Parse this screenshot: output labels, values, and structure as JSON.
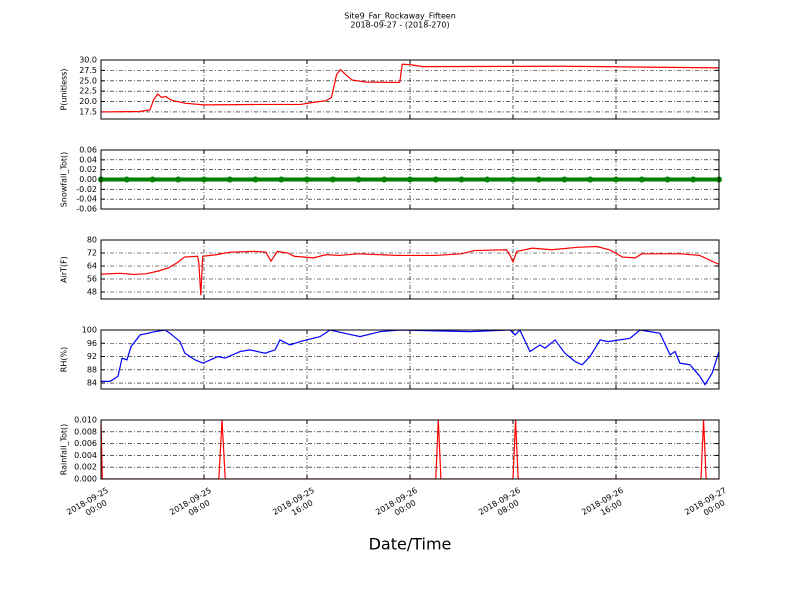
{
  "title": "Site9_Far_Rockaway_Fifteen",
  "subtitle": "2018-09-27 - (2018-270)",
  "xlabel": "Date/Time",
  "chart_data": [
    {
      "type": "line",
      "ylabel": "P(unitless)",
      "grid": true,
      "xlim": [
        "2018-09-25 00:00",
        "2018-09-27 00:00"
      ],
      "xticks": [
        "2018-09-25 00:00",
        "2018-09-25 08:00",
        "2018-09-25 16:00",
        "2018-09-26 00:00",
        "2018-09-26 08:00",
        "2018-09-26 16:00",
        "2018-09-27 00:00"
      ],
      "ylim": [
        15.8,
        30
      ],
      "yticks": [
        {
          "value": 30,
          "label": "30.0"
        },
        27.5,
        {
          "value": 25,
          "label": "25.0"
        },
        22.5,
        {
          "value": 20,
          "label": "20.0"
        },
        17.5
      ],
      "x": [
        "2018-09-25 00:00",
        "2018-09-25 03:00",
        "2018-09-25 03:48",
        "2018-09-25 04:06",
        "2018-09-25 04:24",
        "2018-09-25 04:42",
        "2018-09-25 05:00",
        "2018-09-25 05:30",
        "2018-09-25 06:30",
        "2018-09-25 08:00",
        "2018-09-25 12:00",
        "2018-09-25 15:30",
        "2018-09-25 16:30",
        "2018-09-25 17:30",
        "2018-09-25 17:54",
        "2018-09-25 18:18",
        "2018-09-25 18:36",
        "2018-09-25 19:00",
        "2018-09-25 19:30",
        "2018-09-25 20:30",
        "2018-09-25 23:12",
        "2018-09-25 23:24",
        "2018-09-26 00:12",
        "2018-09-26 01:00",
        "2018-09-26 12:00",
        "2018-09-27 00:00"
      ],
      "series": [
        {
          "color": "#ff0000",
          "values": [
            17.5,
            17.6,
            18.0,
            20.5,
            21.8,
            21.0,
            21.2,
            20.3,
            19.6,
            19.2,
            19.3,
            19.3,
            19.8,
            20.2,
            21.0,
            26.5,
            27.7,
            26.5,
            25.2,
            24.7,
            24.6,
            29.0,
            28.8,
            28.4,
            28.5,
            28.1
          ]
        }
      ]
    },
    {
      "type": "markers",
      "ylabel": "Snowfall_Tot()",
      "grid": true,
      "xlim": [
        "2018-09-25 00:00",
        "2018-09-27 00:00"
      ],
      "xticks": [
        "2018-09-25 00:00",
        "2018-09-25 08:00",
        "2018-09-25 16:00",
        "2018-09-26 00:00",
        "2018-09-26 08:00",
        "2018-09-26 16:00",
        "2018-09-27 00:00"
      ],
      "ylim": [
        -0.06,
        0.06
      ],
      "yticks": [
        0.06,
        0.04,
        0.02,
        {
          "value": 0,
          "label": "0.00"
        },
        -0.02,
        -0.04,
        -0.06
      ],
      "x": [
        "2018-09-25 00:00",
        "2018-09-25 02:00",
        "2018-09-25 04:00",
        "2018-09-25 06:00",
        "2018-09-25 08:00",
        "2018-09-25 10:00",
        "2018-09-25 12:00",
        "2018-09-25 14:00",
        "2018-09-25 16:00",
        "2018-09-25 18:00",
        "2018-09-25 20:00",
        "2018-09-25 22:00",
        "2018-09-26 00:00",
        "2018-09-26 02:00",
        "2018-09-26 04:00",
        "2018-09-26 06:00",
        "2018-09-26 08:00",
        "2018-09-26 10:00",
        "2018-09-26 12:00",
        "2018-09-26 14:00",
        "2018-09-26 16:00",
        "2018-09-26 18:00",
        "2018-09-26 20:00",
        "2018-09-26 22:00",
        "2018-09-27 00:00"
      ],
      "series": [
        {
          "color": "#008000",
          "values": [
            0,
            0,
            0,
            0,
            0,
            0,
            0,
            0,
            0,
            0,
            0,
            0,
            0,
            0,
            0,
            0,
            0,
            0,
            0,
            0,
            0,
            0,
            0,
            0,
            0
          ]
        }
      ]
    },
    {
      "type": "line",
      "ylabel": "AirT(F)",
      "grid": true,
      "xlim": [
        "2018-09-25 00:00",
        "2018-09-27 00:00"
      ],
      "xticks": [
        "2018-09-25 00:00",
        "2018-09-25 08:00",
        "2018-09-25 16:00",
        "2018-09-26 00:00",
        "2018-09-26 08:00",
        "2018-09-26 16:00",
        "2018-09-27 00:00"
      ],
      "ylim": [
        43.7,
        80
      ],
      "yticks": [
        80,
        72,
        64,
        56,
        48
      ],
      "x": [
        "2018-09-25 00:00",
        "2018-09-25 01:30",
        "2018-09-25 02:30",
        "2018-09-25 03:30",
        "2018-09-25 04:30",
        "2018-09-25 05:18",
        "2018-09-25 05:54",
        "2018-09-25 06:30",
        "2018-09-25 07:30",
        "2018-09-25 07:36",
        "2018-09-25 07:45",
        "2018-09-25 07:54",
        "2018-09-25 09:00",
        "2018-09-25 10:00",
        "2018-09-25 12:00",
        "2018-09-25 12:48",
        "2018-09-25 13:12",
        "2018-09-25 13:42",
        "2018-09-25 14:30",
        "2018-09-25 15:00",
        "2018-09-25 16:30",
        "2018-09-25 17:30",
        "2018-09-25 18:30",
        "2018-09-25 20:00",
        "2018-09-25 23:00",
        "2018-09-26 02:00",
        "2018-09-26 04:00",
        "2018-09-26 05:00",
        "2018-09-26 07:30",
        "2018-09-26 07:48",
        "2018-09-26 08:00",
        "2018-09-26 08:18",
        "2018-09-26 09:30",
        "2018-09-26 11:00",
        "2018-09-26 13:00",
        "2018-09-26 14:30",
        "2018-09-26 15:30",
        "2018-09-26 16:30",
        "2018-09-26 17:30",
        "2018-09-26 18:00",
        "2018-09-26 21:00",
        "2018-09-26 22:30",
        "2018-09-27 00:00"
      ],
      "series": [
        {
          "color": "#ff0000",
          "values": [
            59,
            59.5,
            58.8,
            59.2,
            61,
            63,
            66,
            69.5,
            70,
            66,
            46,
            70,
            71,
            72.5,
            73,
            72.5,
            67,
            73,
            72,
            70,
            69,
            71,
            70.5,
            71.5,
            70.5,
            70.5,
            71.5,
            73.5,
            74,
            70,
            66.5,
            73,
            75,
            74,
            75.5,
            76,
            74,
            69.5,
            69,
            71.5,
            71.5,
            70.5,
            65
          ]
        }
      ]
    },
    {
      "type": "line",
      "ylabel": "RH(%)",
      "grid": true,
      "xlim": [
        "2018-09-25 00:00",
        "2018-09-27 00:00"
      ],
      "xticks": [
        "2018-09-25 00:00",
        "2018-09-25 08:00",
        "2018-09-25 16:00",
        "2018-09-26 00:00",
        "2018-09-26 08:00",
        "2018-09-26 16:00",
        "2018-09-27 00:00"
      ],
      "ylim": [
        82.2,
        100
      ],
      "yticks": [
        100,
        96,
        92,
        88,
        84
      ],
      "x": [
        "2018-09-25 00:00",
        "2018-09-25 00:42",
        "2018-09-25 01:19",
        "2018-09-25 01:38",
        "2018-09-25 02:01",
        "2018-09-25 02:20",
        "2018-09-25 03:02",
        "2018-09-25 04:12",
        "2018-09-25 04:58",
        "2018-09-25 05:22",
        "2018-09-25 06:08",
        "2018-09-25 06:31",
        "2018-09-25 07:18",
        "2018-09-25 07:55",
        "2018-09-25 09:05",
        "2018-09-25 09:38",
        "2018-09-25 10:48",
        "2018-09-25 11:34",
        "2018-09-25 12:44",
        "2018-09-25 13:31",
        "2018-09-25 13:54",
        "2018-09-25 14:41",
        "2018-09-25 15:28",
        "2018-09-25 17:01",
        "2018-09-25 17:47",
        "2018-09-25 18:57",
        "2018-09-25 20:07",
        "2018-09-25 21:40",
        "2018-09-25 23:13",
        "2018-09-26 04:40",
        "2018-09-26 07:46",
        "2018-09-26 08:10",
        "2018-09-26 08:32",
        "2018-09-26 09:19",
        "2018-09-26 10:06",
        "2018-09-26 10:29",
        "2018-09-26 11:16",
        "2018-09-26 12:02",
        "2018-09-26 12:49",
        "2018-09-26 13:22",
        "2018-09-26 13:59",
        "2018-09-26 14:46",
        "2018-09-26 15:23",
        "2018-09-26 17:05",
        "2018-09-26 17:52",
        "2018-09-26 19:25",
        "2018-09-26 20:12",
        "2018-09-26 20:35",
        "2018-09-26 20:58",
        "2018-09-26 21:45",
        "2018-09-26 22:31",
        "2018-09-26 22:55",
        "2018-09-26 23:28",
        "2018-09-27 00:00"
      ],
      "series": [
        {
          "color": "#0000ff",
          "values": [
            84.5,
            84.5,
            86,
            91.5,
            91,
            95,
            98.5,
            99.5,
            100,
            99,
            96.5,
            93,
            91,
            90,
            92,
            91.5,
            93.5,
            94,
            93,
            94,
            97,
            95.5,
            96.5,
            98,
            100,
            99,
            98,
            99.5,
            100,
            99.5,
            100,
            98.5,
            100,
            93.5,
            95.5,
            94.5,
            97,
            93,
            90.5,
            89.5,
            92,
            97,
            96.5,
            97.5,
            100,
            99,
            92.5,
            93.5,
            90,
            89.5,
            86,
            83.5,
            87,
            93.5
          ]
        }
      ]
    },
    {
      "type": "line",
      "ylabel": "Rainfall_Tot()",
      "grid": true,
      "xlim": [
        "2018-09-25 00:00",
        "2018-09-27 00:00"
      ],
      "xticks": [
        "2018-09-25 00:00",
        "2018-09-25 08:00",
        "2018-09-25 16:00",
        "2018-09-26 00:00",
        "2018-09-26 08:00",
        "2018-09-26 16:00",
        "2018-09-27 00:00"
      ],
      "ylim": [
        0,
        0.01
      ],
      "yticks": [
        {
          "value": 0.01,
          "label": "0.010"
        },
        0.008,
        0.006,
        0.004,
        0.002,
        {
          "value": 0,
          "label": "0.000"
        }
      ],
      "x": [
        "2018-09-25 00:00",
        "2018-09-25 00:06",
        "2018-09-25 09:09",
        "2018-09-25 09:24",
        "2018-09-25 09:39",
        "2018-09-26 02:00",
        "2018-09-26 02:12",
        "2018-09-26 02:24",
        "2018-09-26 08:00",
        "2018-09-26 08:12",
        "2018-09-26 08:24",
        "2018-09-26 22:36",
        "2018-09-26 22:48",
        "2018-09-26 23:00",
        "2018-09-27 00:00"
      ],
      "series": [
        {
          "color": "#ff0000",
          "values": [
            0.01,
            0,
            0,
            0.01,
            0,
            0,
            0.01,
            0,
            0,
            0.01,
            0,
            0,
            0.01,
            0,
            0
          ]
        }
      ]
    }
  ]
}
